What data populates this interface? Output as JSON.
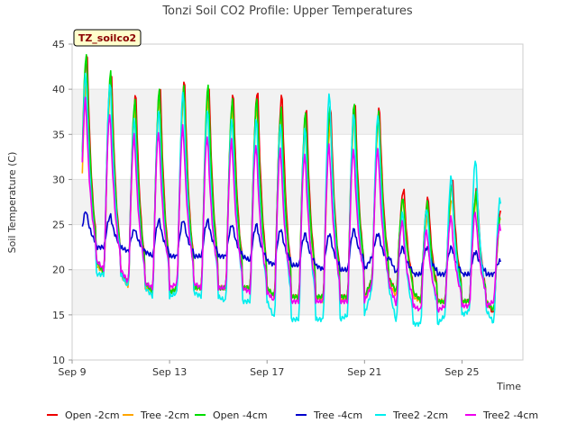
{
  "chart_data": {
    "type": "line",
    "title": "Tonzi Soil CO2 Profile: Upper Temperatures",
    "xlabel": "Time",
    "ylabel": "Soil Temperature (C)",
    "ylim": [
      10,
      45
    ],
    "yticks": [
      10,
      15,
      20,
      25,
      30,
      35,
      40,
      45
    ],
    "xlim_days": [
      9,
      27.5
    ],
    "xticks": [
      {
        "day": 9,
        "label": "Sep 9"
      },
      {
        "day": 13,
        "label": "Sep 13"
      },
      {
        "day": 17,
        "label": "Sep 17"
      },
      {
        "day": 21,
        "label": "Sep 21"
      },
      {
        "day": 25,
        "label": "Sep 25"
      }
    ],
    "grid": "horizontal shaded bands",
    "legend_position": "bottom",
    "tag": "TZ_soilco2",
    "days": [
      9.5,
      10.5,
      11.5,
      12.5,
      13.5,
      14.5,
      15.5,
      16.5,
      17.5,
      18.5,
      19.5,
      20.5,
      21.5,
      22.5,
      23.5,
      24.5,
      25.5,
      26.5
    ],
    "series": [
      {
        "name": "Open -2cm",
        "color": "#ee0000",
        "max": [
          44.0,
          42.0,
          39.5,
          40.5,
          41.0,
          40.5,
          39.5,
          40.0,
          39.5,
          38.0,
          38.0,
          38.5,
          38.0,
          29.0,
          28.0,
          30.0,
          29.0,
          27.0
        ],
        "min": [
          21.0,
          19.5,
          18.5,
          17.5,
          18.0,
          18.0,
          18.0,
          18.0,
          17.0,
          17.0,
          17.0,
          17.0,
          19.0,
          17.5,
          16.5,
          16.5,
          16.5,
          15.0
        ]
      },
      {
        "name": "Tree -2cm",
        "color": "#ffa500",
        "max": [
          41.0,
          41.0,
          38.0,
          39.0,
          40.0,
          39.0,
          38.0,
          38.0,
          37.0,
          36.0,
          36.0,
          37.0,
          37.0,
          28.0,
          26.0,
          28.0,
          28.0,
          26.0
        ],
        "min": [
          20.5,
          19.5,
          18.0,
          17.5,
          18.0,
          18.0,
          18.0,
          18.0,
          17.0,
          17.0,
          16.5,
          17.0,
          18.5,
          17.0,
          16.5,
          16.5,
          16.5,
          15.5
        ]
      },
      {
        "name": "Open -4cm",
        "color": "#00dd00",
        "max": [
          44.0,
          42.0,
          39.0,
          40.0,
          40.5,
          40.5,
          39.0,
          39.0,
          38.0,
          37.5,
          38.0,
          38.5,
          37.5,
          28.0,
          27.5,
          29.5,
          28.5,
          26.0
        ],
        "min": [
          21.0,
          19.5,
          18.5,
          17.5,
          18.0,
          18.0,
          18.0,
          18.0,
          17.0,
          17.0,
          17.0,
          17.0,
          19.0,
          17.5,
          16.5,
          16.5,
          16.5,
          15.5
        ]
      },
      {
        "name": "Tree -4cm",
        "color": "#0000cc",
        "max": [
          26.5,
          26.0,
          24.5,
          25.5,
          25.5,
          25.5,
          25.0,
          25.0,
          24.5,
          24.0,
          24.0,
          24.5,
          24.0,
          22.5,
          22.5,
          22.5,
          22.0,
          21.0
        ],
        "min": [
          22.5,
          22.5,
          22.0,
          21.5,
          21.5,
          21.5,
          21.5,
          21.0,
          20.5,
          20.5,
          20.0,
          20.0,
          21.5,
          19.5,
          19.5,
          19.5,
          19.5,
          19.5
        ]
      },
      {
        "name": "Tree2 -2cm",
        "color": "#00eeee",
        "max": [
          42.0,
          41.0,
          37.0,
          38.0,
          40.0,
          38.0,
          37.0,
          37.0,
          36.5,
          36.0,
          40.0,
          37.5,
          37.5,
          26.5,
          27.0,
          30.5,
          32.5,
          28.0
        ],
        "min": [
          19.5,
          19.5,
          18.0,
          17.0,
          17.5,
          17.0,
          16.5,
          16.5,
          14.5,
          14.5,
          14.5,
          15.0,
          18.0,
          14.0,
          14.0,
          15.0,
          15.5,
          14.0
        ]
      },
      {
        "name": "Tree2 -4cm",
        "color": "#ee00ee",
        "max": [
          39.0,
          37.5,
          35.0,
          35.5,
          36.0,
          35.0,
          34.5,
          34.0,
          33.5,
          33.0,
          34.0,
          33.5,
          33.5,
          25.5,
          24.5,
          26.0,
          26.5,
          25.0
        ],
        "min": [
          21.0,
          20.0,
          18.5,
          18.0,
          18.5,
          18.0,
          18.0,
          17.5,
          16.5,
          16.5,
          16.5,
          16.5,
          18.5,
          16.0,
          15.5,
          16.0,
          16.0,
          16.5
        ]
      }
    ]
  }
}
